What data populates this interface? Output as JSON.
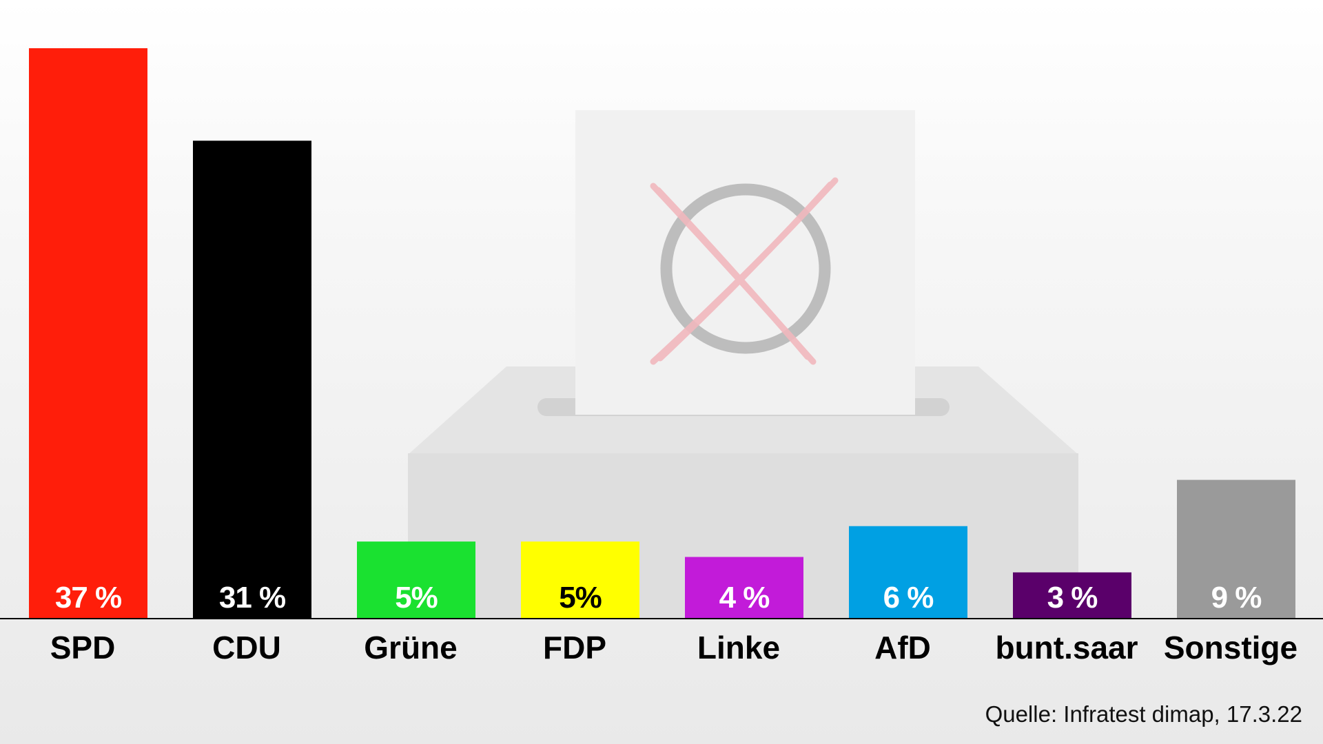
{
  "chart_data": {
    "type": "bar",
    "categories": [
      "SPD",
      "CDU",
      "Grüne",
      "FDP",
      "Linke",
      "AfD",
      "bunt.saar",
      "Sonstige"
    ],
    "values": [
      37,
      31,
      5,
      5,
      4,
      6,
      3,
      9
    ],
    "value_labels": [
      "37 %",
      "31 %",
      "5%",
      "5%",
      "4 %",
      "6 %",
      "3 %",
      "9 %"
    ],
    "colors": [
      "#ff1e0a",
      "#000000",
      "#1ae130",
      "#ffff00",
      "#c21bd9",
      "#00a0e3",
      "#5a006a",
      "#9a9a9a"
    ],
    "label_colors": [
      "#ffffff",
      "#ffffff",
      "#ffffff",
      "#000000",
      "#ffffff",
      "#ffffff",
      "#ffffff",
      "#ffffff"
    ],
    "title": "",
    "xlabel": "",
    "ylabel": "",
    "ylim": [
      0,
      37
    ],
    "grid": false,
    "background": "ballot-box illustration"
  },
  "source": "Quelle: Infratest dimap, 17.3.22"
}
